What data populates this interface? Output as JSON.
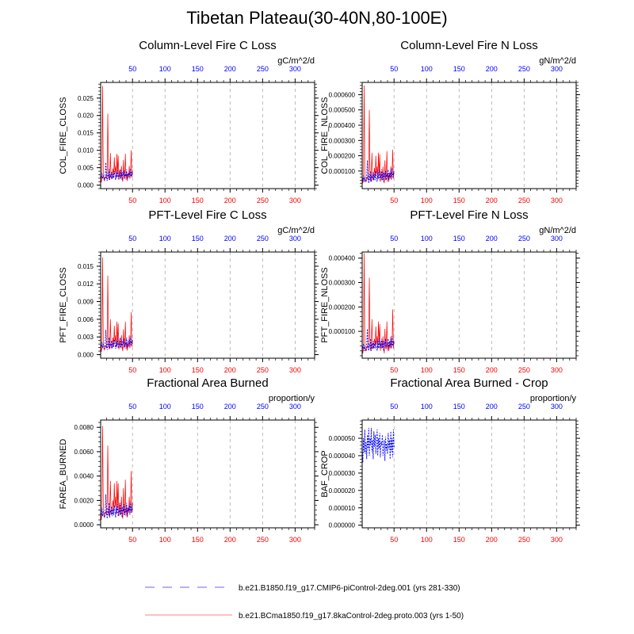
{
  "title": "Tibetan Plateau(30-40N,80-100E)",
  "colors": {
    "series_ref": "#0000ff",
    "series_case": "#ff0000",
    "grid": "#aaaaaa"
  },
  "legend": [
    {
      "label": "b.e21.B1850.f19_g17.CMIP6-piControl-2deg.001 (yrs 281-330)",
      "style": "dashed",
      "color": "#0000ff"
    },
    {
      "label": "b.e21.BCma1850.f19_g17.8kaControl-2deg.proto.003 (yrs 1-50)",
      "style": "solid",
      "color": "#ff0000"
    }
  ],
  "chart_data": [
    {
      "type": "line",
      "title": "Column-Level Fire C Loss",
      "ylabel": "COL_FIRE_CLOSS",
      "units": "gC/m^2/d",
      "xlim": [
        1,
        330
      ],
      "ylim": [
        -0.001,
        0.0295
      ],
      "yticks": [
        0,
        0.005,
        0.01,
        0.015,
        0.02,
        0.025
      ],
      "ytick_labels": [
        "0.000",
        "0.005",
        "0.010",
        "0.015",
        "0.020",
        "0.025"
      ],
      "xticks": [
        50,
        100,
        150,
        200,
        250,
        300
      ],
      "series": [
        {
          "name": "ref",
          "x_start": 1,
          "values": [
            0.0025,
            0.002,
            0.0035,
            0.0018,
            0.0028,
            0.0022,
            0.0016,
            0.003,
            0.0065,
            0.0025,
            0.0012,
            0.0035,
            0.002,
            0.0045,
            0.0015,
            0.003,
            0.0022,
            0.0038,
            0.0018,
            0.0032,
            0.002,
            0.004,
            0.0028,
            0.0015,
            0.0035,
            0.0022,
            0.0042,
            0.0018,
            0.003,
            0.0025,
            0.0045,
            0.002,
            0.0035,
            0.0015,
            0.0038,
            0.0028,
            0.0042,
            0.002,
            0.0032,
            0.0025,
            0.0045,
            0.0018,
            0.0035,
            0.0028,
            0.004,
            0.0022,
            0.0048,
            0.0025,
            0.0038,
            0.003
          ]
        },
        {
          "name": "case",
          "x_start": 1,
          "values": [
            0.003,
            0.0008,
            0.002,
            0.0285,
            0.004,
            0.0015,
            0.0012,
            0.002,
            0.0025,
            0.0018,
            0.0045,
            0.0205,
            0.004,
            0.0015,
            0.003,
            0.0092,
            0.0022,
            0.0018,
            0.0035,
            0.0048,
            0.0025,
            0.008,
            0.0035,
            0.0055,
            0.002,
            0.009,
            0.003,
            0.0085,
            0.0015,
            0.0042,
            0.0018,
            0.0025,
            0.0055,
            0.002,
            0.001,
            0.0072,
            0.0018,
            0.0028,
            0.009,
            0.0015,
            0.0035,
            0.0012,
            0.0032,
            0.0022,
            0.0055,
            0.0018,
            0.0035,
            0.01,
            0.0022,
            0.0042
          ]
        }
      ]
    },
    {
      "type": "line",
      "title": "Column-Level Fire N Loss",
      "ylabel": "COL_FIRE_NLOSS",
      "units": "gN/m^2/d",
      "xlim": [
        1,
        330
      ],
      "ylim": [
        -1.5e-05,
        0.00068
      ],
      "yticks": [
        0.0001,
        0.0002,
        0.0003,
        0.0004,
        0.0005,
        0.0006
      ],
      "ytick_labels": [
        "0.000100",
        "0.000200",
        "0.000300",
        "0.000400",
        "0.000500",
        "0.000600"
      ],
      "xticks": [
        50,
        100,
        150,
        200,
        250,
        300
      ],
      "series": [
        {
          "name": "ref",
          "x_start": 1,
          "values": [
            5e-05,
            4e-05,
            7e-05,
            3e-05,
            6e-05,
            4e-05,
            3e-05,
            7e-05,
            0.00017,
            6e-05,
            2e-05,
            8e-05,
            4e-05,
            0.0001,
            3e-05,
            7e-05,
            5e-05,
            9e-05,
            4e-05,
            8e-05,
            4e-05,
            0.0001,
            6e-05,
            3e-05,
            9e-05,
            5e-05,
            0.00011,
            4e-05,
            7e-05,
            6e-05,
            0.00011,
            4e-05,
            9e-05,
            3e-05,
            9e-05,
            6e-05,
            0.0001,
            4e-05,
            8e-05,
            6e-05,
            0.00011,
            4e-05,
            9e-05,
            6e-05,
            0.0001,
            5e-05,
            0.00012,
            6e-05,
            9e-05,
            7e-05
          ]
        },
        {
          "name": "case",
          "x_start": 1,
          "values": [
            7e-05,
            2e-05,
            5e-05,
            0.00066,
            0.0001,
            3e-05,
            3e-05,
            5e-05,
            6e-05,
            4e-05,
            0.0001,
            0.0005,
            0.0001,
            3e-05,
            7e-05,
            0.00022,
            5e-05,
            4e-05,
            8e-05,
            0.00012,
            6e-05,
            0.0002,
            8e-05,
            0.00013,
            5e-05,
            0.00022,
            7e-05,
            0.00021,
            3e-05,
            0.0001,
            4e-05,
            6e-05,
            0.00013,
            5e-05,
            2e-05,
            0.00017,
            4e-05,
            7e-05,
            0.00023,
            3e-05,
            8e-05,
            3e-05,
            8e-05,
            5e-05,
            0.00013,
            4e-05,
            8e-05,
            0.00024,
            5e-05,
            0.0001
          ]
        }
      ]
    },
    {
      "type": "line",
      "title": "PFT-Level Fire C Loss",
      "ylabel": "PFT_FIRE_CLOSS",
      "units": "gC/m^2/d",
      "xlim": [
        1,
        330
      ],
      "ylim": [
        -0.0006,
        0.0174
      ],
      "yticks": [
        0,
        0.003,
        0.006,
        0.009,
        0.012,
        0.015
      ],
      "ytick_labels": [
        "0.000",
        "0.003",
        "0.006",
        "0.009",
        "0.012",
        "0.015"
      ],
      "xticks": [
        50,
        100,
        150,
        200,
        250,
        300
      ],
      "series": [
        {
          "name": "ref",
          "x_start": 1,
          "values": [
            0.0016,
            0.0013,
            0.0022,
            0.0011,
            0.0018,
            0.0014,
            0.001,
            0.0019,
            0.0042,
            0.0016,
            0.0008,
            0.0022,
            0.0013,
            0.0029,
            0.001,
            0.0019,
            0.0014,
            0.0024,
            0.0011,
            0.002,
            0.0013,
            0.0026,
            0.0018,
            0.001,
            0.0022,
            0.0014,
            0.0027,
            0.0011,
            0.0019,
            0.0016,
            0.0029,
            0.0013,
            0.0022,
            0.001,
            0.0024,
            0.0018,
            0.0027,
            0.0013,
            0.002,
            0.0016,
            0.0029,
            0.0011,
            0.0022,
            0.0018,
            0.0026,
            0.0014,
            0.0031,
            0.0016,
            0.0024,
            0.0019
          ]
        },
        {
          "name": "case",
          "x_start": 1,
          "values": [
            0.0018,
            0.0005,
            0.0012,
            0.0165,
            0.0025,
            0.0009,
            0.0008,
            0.0012,
            0.0015,
            0.0011,
            0.0027,
            0.0134,
            0.0025,
            0.0009,
            0.0018,
            0.006,
            0.0013,
            0.0011,
            0.0021,
            0.0029,
            0.0015,
            0.0049,
            0.0021,
            0.0033,
            0.0012,
            0.0056,
            0.0018,
            0.0053,
            0.0009,
            0.0025,
            0.0011,
            0.0015,
            0.0033,
            0.0012,
            0.0006,
            0.0043,
            0.0011,
            0.0017,
            0.0056,
            0.0009,
            0.0021,
            0.0007,
            0.0019,
            0.0013,
            0.0033,
            0.0011,
            0.0021,
            0.0072,
            0.0013,
            0.0025
          ]
        }
      ]
    },
    {
      "type": "line",
      "title": "PFT-Level Fire N Loss",
      "ylabel": "PFT_FIRE_NLOSS",
      "units": "gN/m^2/d",
      "xlim": [
        1,
        330
      ],
      "ylim": [
        -1e-05,
        0.000425
      ],
      "yticks": [
        0.0001,
        0.0002,
        0.0003,
        0.0004
      ],
      "ytick_labels": [
        "0.000100",
        "0.000200",
        "0.000300",
        "0.000400"
      ],
      "xticks": [
        50,
        100,
        150,
        200,
        250,
        300
      ],
      "series": [
        {
          "name": "ref",
          "x_start": 1,
          "values": [
            4e-05,
            3e-05,
            5e-05,
            2e-05,
            4e-05,
            3e-05,
            2e-05,
            5e-05,
            0.00011,
            4e-05,
            2e-05,
            5e-05,
            3e-05,
            7e-05,
            2e-05,
            5e-05,
            3e-05,
            6e-05,
            3e-05,
            5e-05,
            3e-05,
            6e-05,
            4e-05,
            2e-05,
            6e-05,
            3e-05,
            7e-05,
            3e-05,
            5e-05,
            4e-05,
            7e-05,
            3e-05,
            6e-05,
            2e-05,
            6e-05,
            4e-05,
            7e-05,
            3e-05,
            5e-05,
            4e-05,
            7e-05,
            3e-05,
            6e-05,
            4e-05,
            7e-05,
            3e-05,
            8e-05,
            4e-05,
            6e-05,
            5e-05
          ]
        },
        {
          "name": "case",
          "x_start": 1,
          "values": [
            5e-05,
            1e-05,
            3e-05,
            0.00042,
            6e-05,
            2e-05,
            2e-05,
            3e-05,
            4e-05,
            3e-05,
            7e-05,
            0.00032,
            6e-05,
            2e-05,
            4e-05,
            0.00015,
            3e-05,
            3e-05,
            5e-05,
            7e-05,
            4e-05,
            0.00012,
            5e-05,
            8e-05,
            3e-05,
            0.00014,
            5e-05,
            0.00013,
            2e-05,
            6e-05,
            3e-05,
            4e-05,
            8e-05,
            3e-05,
            1e-05,
            0.00011,
            3e-05,
            4e-05,
            0.00014,
            2e-05,
            5e-05,
            2e-05,
            5e-05,
            3e-05,
            8e-05,
            3e-05,
            5e-05,
            0.00019,
            3e-05,
            6e-05
          ]
        }
      ]
    },
    {
      "type": "line",
      "title": "Fractional Area Burned",
      "ylabel": "FAREA_BURNED",
      "units": "proportion/y",
      "xlim": [
        1,
        330
      ],
      "ylim": [
        -0.00025,
        0.0086
      ],
      "yticks": [
        0,
        0.002,
        0.004,
        0.006,
        0.008
      ],
      "ytick_labels": [
        "0.0000",
        "0.0020",
        "0.0040",
        "0.0060",
        "0.0080"
      ],
      "xticks": [
        50,
        100,
        150,
        200,
        250,
        300
      ],
      "series": [
        {
          "name": "ref",
          "x_start": 1,
          "values": [
            0.001,
            0.0008,
            0.0014,
            0.0007,
            0.0011,
            0.0009,
            0.0006,
            0.0012,
            0.0025,
            0.001,
            0.0005,
            0.0014,
            0.0008,
            0.0018,
            0.0006,
            0.0012,
            0.0009,
            0.0015,
            0.0007,
            0.0013,
            0.0008,
            0.0016,
            0.0011,
            0.0006,
            0.0014,
            0.0009,
            0.0017,
            0.0007,
            0.0012,
            0.001,
            0.0018,
            0.0008,
            0.0014,
            0.0006,
            0.0015,
            0.0011,
            0.0017,
            0.0008,
            0.0013,
            0.001,
            0.0018,
            0.0007,
            0.0014,
            0.0011,
            0.0016,
            0.0009,
            0.0019,
            0.001,
            0.0015,
            0.0012
          ]
        },
        {
          "name": "case",
          "x_start": 1,
          "values": [
            0.0012,
            0.0004,
            0.0009,
            0.0081,
            0.0018,
            0.0007,
            0.0006,
            0.0009,
            0.0011,
            0.0008,
            0.0019,
            0.0065,
            0.0018,
            0.0007,
            0.0013,
            0.0036,
            0.001,
            0.0008,
            0.0015,
            0.002,
            0.0011,
            0.0034,
            0.0015,
            0.0023,
            0.0009,
            0.0036,
            0.0013,
            0.0034,
            0.0007,
            0.0018,
            0.0008,
            0.0011,
            0.0023,
            0.0009,
            0.0005,
            0.003,
            0.0008,
            0.0012,
            0.0037,
            0.0007,
            0.0015,
            0.0006,
            0.0014,
            0.001,
            0.0023,
            0.0008,
            0.0015,
            0.0044,
            0.001,
            0.0018
          ]
        }
      ]
    },
    {
      "type": "line",
      "title": "Fractional Area Burned - Crop",
      "ylabel": "BAF_CROP",
      "units": "proportion/y",
      "xlim": [
        1,
        330
      ],
      "ylim": [
        -1.5e-06,
        6.05e-05
      ],
      "yticks": [
        0,
        1e-05,
        2e-05,
        3e-05,
        4e-05,
        5e-05
      ],
      "ytick_labels": [
        "0.000000",
        "0.000010",
        "0.000020",
        "0.000030",
        "0.000040",
        "0.000050"
      ],
      "xticks": [
        50,
        100,
        150,
        200,
        250,
        300
      ],
      "series": [
        {
          "name": "ref",
          "x_start": 1,
          "values": [
            4.5e-05,
            3.6e-05,
            5e-05,
            4.2e-05,
            5.5e-05,
            4.1e-05,
            4.8e-05,
            3.8e-05,
            5.2e-05,
            4.4e-05,
            5.6e-05,
            4e-05,
            5e-05,
            4.6e-05,
            5.6e-05,
            4.2e-05,
            4.9e-05,
            3.8e-05,
            5.4e-05,
            4.5e-05,
            5.2e-05,
            4.1e-05,
            4.7e-05,
            5.5e-05,
            4e-05,
            5e-05,
            4.4e-05,
            5.3e-05,
            3.9e-05,
            4.8e-05,
            4.6e-05,
            5.2e-05,
            4e-05,
            4.5e-05,
            4.9e-05,
            3.7e-05,
            5.1e-05,
            4.3e-05,
            4.7e-05,
            4.1e-05,
            5.3e-05,
            4.4e-05,
            4.9e-05,
            3.8e-05,
            5.4e-05,
            4.2e-05,
            5e-05,
            3.9e-05,
            5.5e-05,
            4.5e-05
          ]
        },
        {
          "name": "case",
          "x_start": 1,
          "values": []
        }
      ]
    }
  ]
}
